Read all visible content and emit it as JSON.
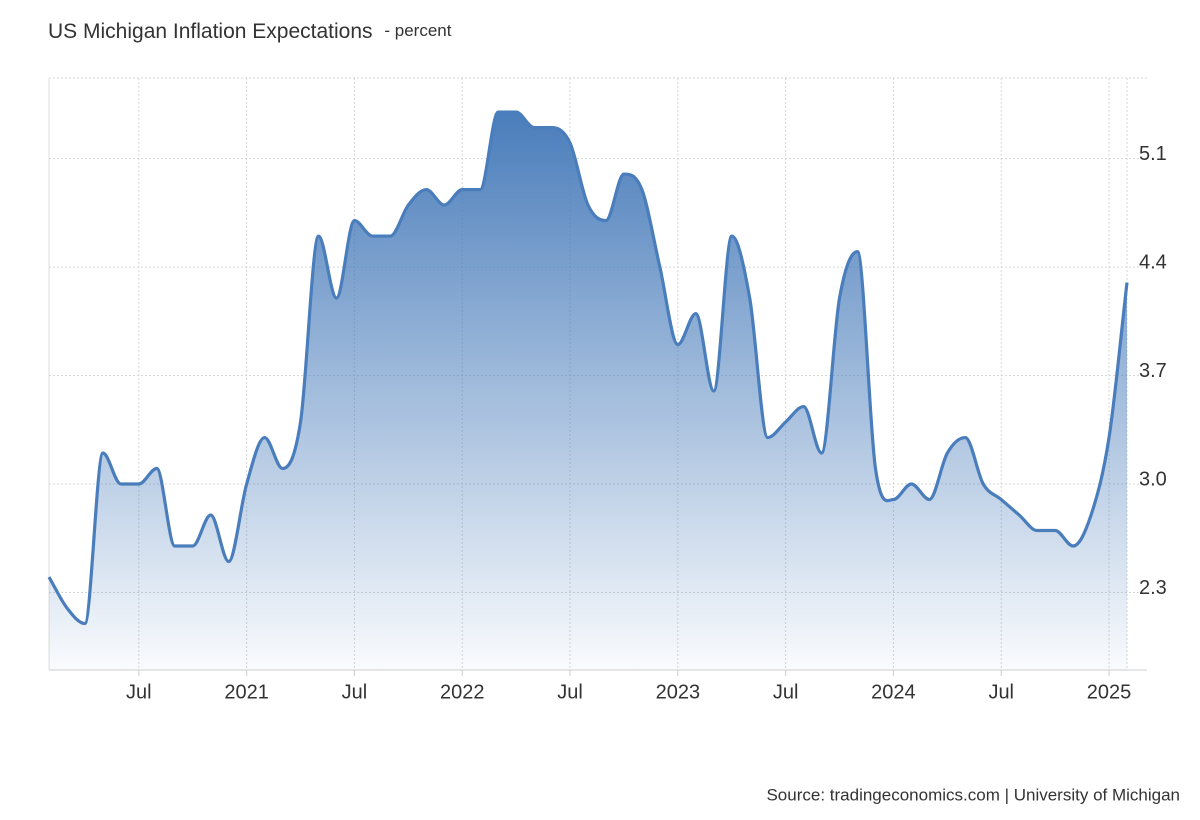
{
  "chart_data": {
    "type": "area",
    "title": "US Michigan Inflation Expectations",
    "subtitle": "- percent",
    "source": "Source: tradingeconomics.com | University of Michigan",
    "color": "#4a7dbb",
    "grid": true,
    "categories": [
      "2020-02",
      "2020-03",
      "2020-04",
      "2020-05",
      "2020-06",
      "2020-07",
      "2020-08",
      "2020-09",
      "2020-10",
      "2020-11",
      "2020-12",
      "2021-01",
      "2021-02",
      "2021-03",
      "2021-04",
      "2021-05",
      "2021-06",
      "2021-07",
      "2021-08",
      "2021-09",
      "2021-10",
      "2021-11",
      "2021-12",
      "2022-01",
      "2022-02",
      "2022-03",
      "2022-04",
      "2022-05",
      "2022-06",
      "2022-07",
      "2022-08",
      "2022-09",
      "2022-10",
      "2022-11",
      "2022-12",
      "2023-01",
      "2023-02",
      "2023-03",
      "2023-04",
      "2023-05",
      "2023-06",
      "2023-07",
      "2023-08",
      "2023-09",
      "2023-10",
      "2023-11",
      "2023-12",
      "2024-01",
      "2024-02",
      "2024-03",
      "2024-04",
      "2024-05",
      "2024-06",
      "2024-07",
      "2024-08",
      "2024-09",
      "2024-10",
      "2024-11",
      "2024-12",
      "2025-01",
      "2025-02"
    ],
    "values": [
      2.4,
      2.2,
      2.1,
      3.2,
      3.0,
      3.0,
      3.1,
      2.6,
      2.6,
      2.8,
      2.5,
      3.0,
      3.3,
      3.1,
      3.4,
      4.6,
      4.2,
      4.7,
      4.6,
      4.6,
      4.8,
      4.9,
      4.8,
      4.9,
      4.9,
      5.4,
      5.4,
      5.3,
      5.3,
      5.2,
      4.8,
      4.7,
      5.0,
      4.9,
      4.4,
      3.9,
      4.1,
      3.6,
      4.6,
      4.2,
      3.3,
      3.4,
      3.5,
      3.2,
      4.2,
      4.5,
      3.1,
      2.9,
      3.0,
      2.9,
      3.2,
      3.3,
      3.0,
      2.9,
      2.8,
      2.7,
      2.7,
      2.6,
      2.8,
      3.3,
      4.3
    ],
    "xticks": [
      {
        "value": "2020-07",
        "label": "Jul"
      },
      {
        "value": "2021-01",
        "label": "2021"
      },
      {
        "value": "2021-07",
        "label": "Jul"
      },
      {
        "value": "2022-01",
        "label": "2022"
      },
      {
        "value": "2022-07",
        "label": "Jul"
      },
      {
        "value": "2023-01",
        "label": "2023"
      },
      {
        "value": "2023-07",
        "label": "Jul"
      },
      {
        "value": "2024-01",
        "label": "2024"
      },
      {
        "value": "2024-07",
        "label": "Jul"
      },
      {
        "value": "2025-01",
        "label": "2025"
      }
    ],
    "ylim": [
      1.8,
      5.62
    ],
    "yticks": [
      2.3,
      {
        "value": 3,
        "label": "3.0"
      },
      3.7,
      4.4,
      5.1
    ]
  }
}
